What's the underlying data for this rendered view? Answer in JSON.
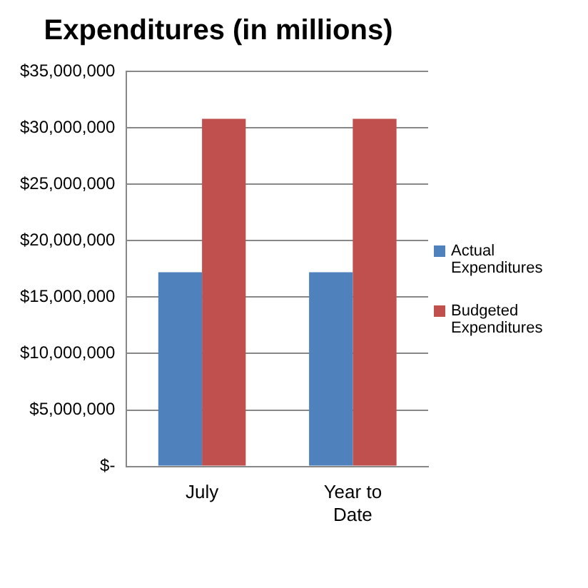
{
  "chart_data": {
    "type": "bar",
    "title": "Expenditures (in millions)",
    "categories": [
      "July",
      "Year to Date"
    ],
    "series": [
      {
        "name": "Actual Expenditures",
        "color": "#4f81bd",
        "values": [
          17200000,
          17200000
        ]
      },
      {
        "name": "Budgeted Expenditures",
        "color": "#c0504d",
        "values": [
          30800000,
          30800000
        ]
      }
    ],
    "ylim": [
      0,
      35000000
    ],
    "yticks": [
      {
        "value": 0,
        "label": "$-"
      },
      {
        "value": 5000000,
        "label": "$5,000,000"
      },
      {
        "value": 10000000,
        "label": "$10,000,000"
      },
      {
        "value": 15000000,
        "label": "$15,000,000"
      },
      {
        "value": 20000000,
        "label": "$20,000,000"
      },
      {
        "value": 25000000,
        "label": "$25,000,000"
      },
      {
        "value": 30000000,
        "label": "$30,000,000"
      },
      {
        "value": 35000000,
        "label": "$35,000,000"
      }
    ],
    "grid": "y",
    "legend": "right"
  }
}
